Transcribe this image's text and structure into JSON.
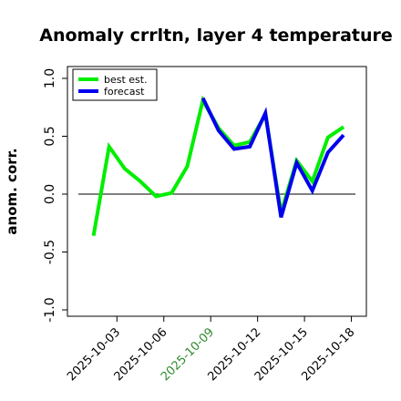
{
  "chart_data": {
    "type": "line",
    "title": "Anomaly crrltn, layer 4 temperature",
    "xlabel": "",
    "ylabel": "anom. corr.",
    "ylim": [
      -1.0,
      1.0
    ],
    "yticks": [
      "-1.0",
      "-0.5",
      "0.0",
      "0.5",
      "1.0"
    ],
    "xticks": [
      "2025-10-03",
      "2025-10-06",
      "2025-10-09",
      "2025-10-12",
      "2025-10-15",
      "2025-10-18"
    ],
    "highlighted_xtick": "2025-10-09",
    "highlight_color": "#2e8b2e",
    "reference_line": 0.0,
    "grid": false,
    "legend_position": "top-left",
    "x": [
      1.5,
      2.5,
      3.5,
      4.5,
      5.5,
      6.5,
      7.5,
      8.5,
      9.5,
      10.5,
      11.5,
      12.5,
      13.5,
      14.5,
      15.5,
      16.5,
      17.5,
      18.5
    ],
    "series": [
      {
        "name": "best est.",
        "color": "#00ee00",
        "values": [
          -0.36,
          0.41,
          0.22,
          0.11,
          -0.02,
          0.01,
          0.24,
          0.81,
          0.57,
          0.42,
          0.45,
          0.69,
          -0.16,
          0.29,
          0.11,
          0.49,
          0.58,
          null
        ]
      },
      {
        "name": "forecast",
        "color": "#0000ee",
        "values": [
          null,
          null,
          null,
          null,
          null,
          null,
          null,
          0.83,
          0.55,
          0.39,
          0.41,
          0.7,
          -0.2,
          0.27,
          0.03,
          0.36,
          0.51,
          null
        ]
      }
    ]
  }
}
